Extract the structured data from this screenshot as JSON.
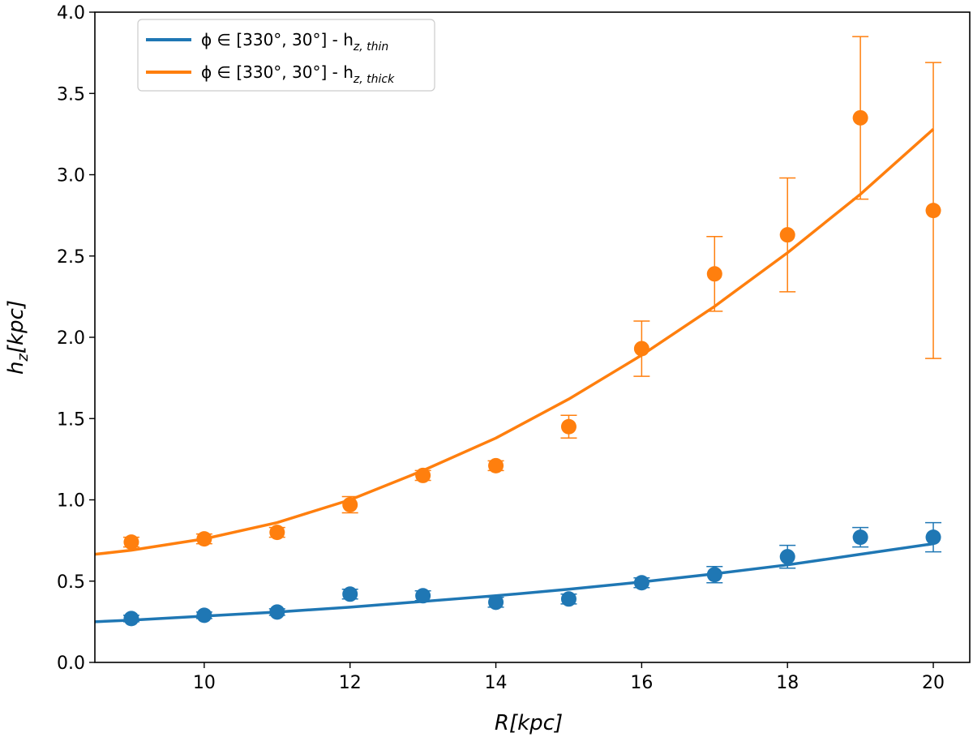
{
  "chart_data": {
    "type": "scatter",
    "title": "",
    "xlabel": "R[kpc]",
    "ylabel": "h_z[kpc]",
    "xlim": [
      8.5,
      20.5
    ],
    "ylim": [
      0.0,
      4.0
    ],
    "x_ticks": [
      10,
      12,
      14,
      16,
      18,
      20
    ],
    "y_ticks": [
      0.0,
      0.5,
      1.0,
      1.5,
      2.0,
      2.5,
      3.0,
      3.5,
      4.0
    ],
    "y_tick_labels": [
      "0.0",
      "0.5",
      "1.0",
      "1.5",
      "2.0",
      "2.5",
      "3.0",
      "3.5",
      "4.0"
    ],
    "grid": false,
    "legend_position": "top-left",
    "series": [
      {
        "name": "thin",
        "legend_main": "ϕ ∈ [330°, 30°] - h",
        "legend_sub": "z, thin",
        "color": "#1f77b4",
        "x": [
          9,
          10,
          11,
          12,
          13,
          14,
          15,
          16,
          17,
          18,
          19,
          20
        ],
        "y": [
          0.27,
          0.29,
          0.31,
          0.42,
          0.41,
          0.37,
          0.39,
          0.49,
          0.54,
          0.65,
          0.77,
          0.77
        ],
        "yerr": [
          0.02,
          0.02,
          0.02,
          0.03,
          0.03,
          0.03,
          0.03,
          0.03,
          0.05,
          0.07,
          0.06,
          0.09
        ],
        "fit_x": [
          8.5,
          9,
          10,
          11,
          12,
          13,
          14,
          15,
          16,
          17,
          18,
          19,
          20
        ],
        "fit_y": [
          0.25,
          0.26,
          0.285,
          0.31,
          0.34,
          0.375,
          0.41,
          0.45,
          0.495,
          0.545,
          0.6,
          0.665,
          0.73
        ]
      },
      {
        "name": "thick",
        "legend_main": "ϕ ∈ [330°, 30°] - h",
        "legend_sub": "z, thick",
        "color": "#ff7f0e",
        "x": [
          9,
          10,
          11,
          12,
          13,
          14,
          15,
          16,
          17,
          18,
          19,
          20
        ],
        "y": [
          0.74,
          0.76,
          0.8,
          0.97,
          1.15,
          1.21,
          1.45,
          1.93,
          2.39,
          2.63,
          3.35,
          2.78
        ],
        "yerr": [
          0.03,
          0.03,
          0.03,
          0.05,
          0.03,
          0.03,
          0.07,
          0.17,
          0.23,
          0.35,
          0.5,
          0.91
        ],
        "fit_x": [
          8.5,
          9,
          10,
          11,
          12,
          13,
          14,
          15,
          16,
          17,
          18,
          19,
          20
        ],
        "fit_y": [
          0.665,
          0.69,
          0.76,
          0.86,
          1.0,
          1.18,
          1.38,
          1.62,
          1.89,
          2.19,
          2.52,
          2.88,
          3.28
        ]
      }
    ]
  }
}
